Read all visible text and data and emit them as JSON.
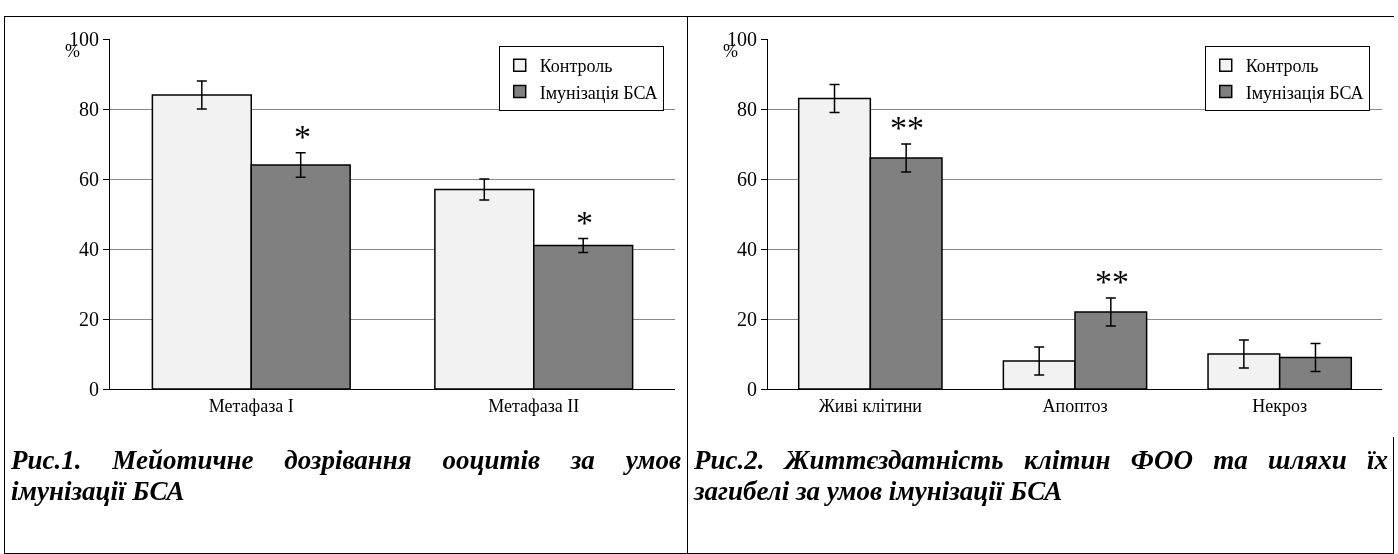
{
  "chart_data": [
    {
      "type": "bar",
      "categories": [
        "Метафаза I",
        "Метафаза II"
      ],
      "ylabel": "%",
      "ylim": [
        0,
        100
      ],
      "yticks": [
        0,
        20,
        40,
        60,
        80,
        100
      ],
      "grid": "y",
      "legend": "top right",
      "series": [
        {
          "name": "Контроль",
          "color": "#f2f2f2",
          "values": [
            84,
            57
          ],
          "errors": [
            4,
            3
          ]
        },
        {
          "name": "Імунізація БСА",
          "color": "#808080",
          "values": [
            64,
            41
          ],
          "errors": [
            3.5,
            2
          ]
        }
      ],
      "annotations": [
        {
          "text": "*",
          "x": "Метафаза I",
          "y": 64
        },
        {
          "text": "*",
          "x": "Метафаза II",
          "y": 41
        },
        "Рис.1.  Мейотичне дозрівання ооцитів за умов імунізації БСА"
      ]
    },
    {
      "type": "bar",
      "categories": [
        "Живі клітини",
        "Апоптоз",
        "Некроз"
      ],
      "ylabel": "%",
      "ylim": [
        0,
        100
      ],
      "yticks": [
        0,
        20,
        40,
        60,
        80,
        100
      ],
      "grid": "y",
      "legend": "top right",
      "series": [
        {
          "name": "Контроль",
          "color": "#f2f2f2",
          "values": [
            83,
            8,
            10
          ],
          "errors": [
            4,
            4,
            4
          ]
        },
        {
          "name": "Імунізація БСА",
          "color": "#808080",
          "values": [
            66,
            22,
            9
          ],
          "errors": [
            4,
            4,
            4
          ]
        }
      ],
      "annotations": [
        {
          "text": "**",
          "x": "Живі клітини",
          "y": 66
        },
        {
          "text": "**",
          "x": "Апоптоз",
          "y": 22
        },
        "Рис.2. Життєздатність клітин ФОО та шляхи їх загибелі за умов імунізації БСА"
      ]
    }
  ]
}
